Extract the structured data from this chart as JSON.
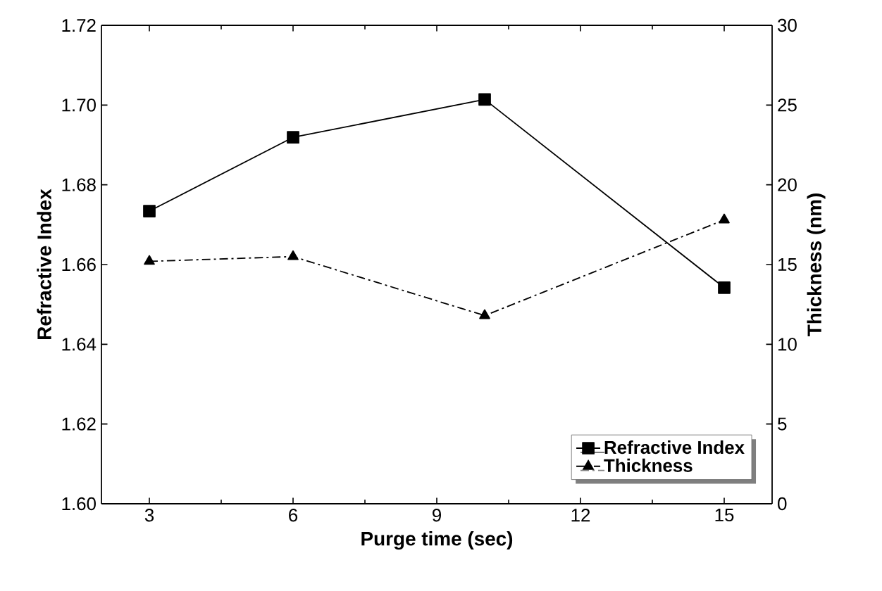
{
  "chart_data": {
    "type": "line",
    "xlabel": "Purge time (sec)",
    "ylabel": "Refractive Index",
    "y2label": "Thickness (nm)",
    "x": [
      3,
      6,
      10,
      15
    ],
    "series": [
      {
        "name": "Refractive Index",
        "color": "#000000",
        "marker": "square",
        "line_style": "solid",
        "values": [
          1.6734,
          1.6919,
          1.7014,
          1.6542
        ]
      },
      {
        "name": "Thickness",
        "color": "#000000",
        "marker": "triangle",
        "line_style": "dashdot",
        "axis": "y2",
        "values": [
          15.2,
          15.5,
          11.8,
          17.8
        ]
      }
    ],
    "xlim": [
      2,
      16
    ],
    "xticks": [
      3,
      6,
      9,
      12,
      15
    ],
    "ylim": [
      1.6,
      1.72
    ],
    "yticks": [
      {
        "value": 1.6,
        "label": "1.60"
      },
      {
        "value": 1.62,
        "label": "1.62"
      },
      {
        "value": 1.64,
        "label": "1.64"
      },
      {
        "value": 1.66,
        "label": "1.66"
      },
      {
        "value": 1.68,
        "label": "1.68"
      },
      {
        "value": 1.7,
        "label": "1.70"
      },
      {
        "value": 1.72,
        "label": "1.72"
      }
    ],
    "y2lim": [
      0,
      30
    ],
    "y2ticks": [
      0,
      5,
      10,
      15,
      20,
      25,
      30
    ],
    "legend": "bottom right",
    "grid": false
  }
}
